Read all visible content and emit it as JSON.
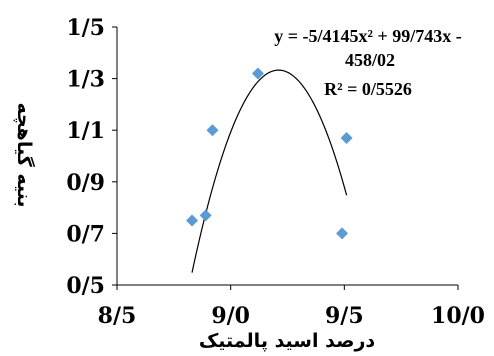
{
  "chart_data": {
    "type": "scatter",
    "title": "",
    "xlabel": "درصد اسید پالمتیک",
    "ylabel": "بنیه گیاهچه",
    "xlim": [
      8.5,
      10.0
    ],
    "ylim": [
      0.5,
      1.5
    ],
    "x_ticks": [
      {
        "value": 8.5,
        "label": "8/5"
      },
      {
        "value": 9.0,
        "label": "9/0"
      },
      {
        "value": 9.5,
        "label": "9/5"
      },
      {
        "value": 10.0,
        "label": "10/0"
      }
    ],
    "y_ticks": [
      {
        "value": 0.5,
        "label": "0/5"
      },
      {
        "value": 0.7,
        "label": "0/7"
      },
      {
        "value": 0.9,
        "label": "0/9"
      },
      {
        "value": 1.1,
        "label": "1/1"
      },
      {
        "value": 1.3,
        "label": "1/3"
      },
      {
        "value": 1.5,
        "label": "1/5"
      }
    ],
    "grid": false,
    "points": [
      {
        "x": 8.83,
        "y": 0.75
      },
      {
        "x": 8.89,
        "y": 0.77
      },
      {
        "x": 8.92,
        "y": 1.1
      },
      {
        "x": 9.12,
        "y": 1.32
      },
      {
        "x": 9.49,
        "y": 0.7
      },
      {
        "x": 9.51,
        "y": 1.07
      }
    ],
    "trendline": {
      "type": "polynomial",
      "coefficients": [
        -5.4145,
        99.743,
        -458.02
      ],
      "x_range": [
        8.83,
        9.51
      ],
      "equation_lines": [
        "y = -5/4145x² + 99/743x -",
        "458/02",
        "R² = 0/5526"
      ]
    },
    "marker_color": "#5B9BD5",
    "line_color": "#000000"
  }
}
